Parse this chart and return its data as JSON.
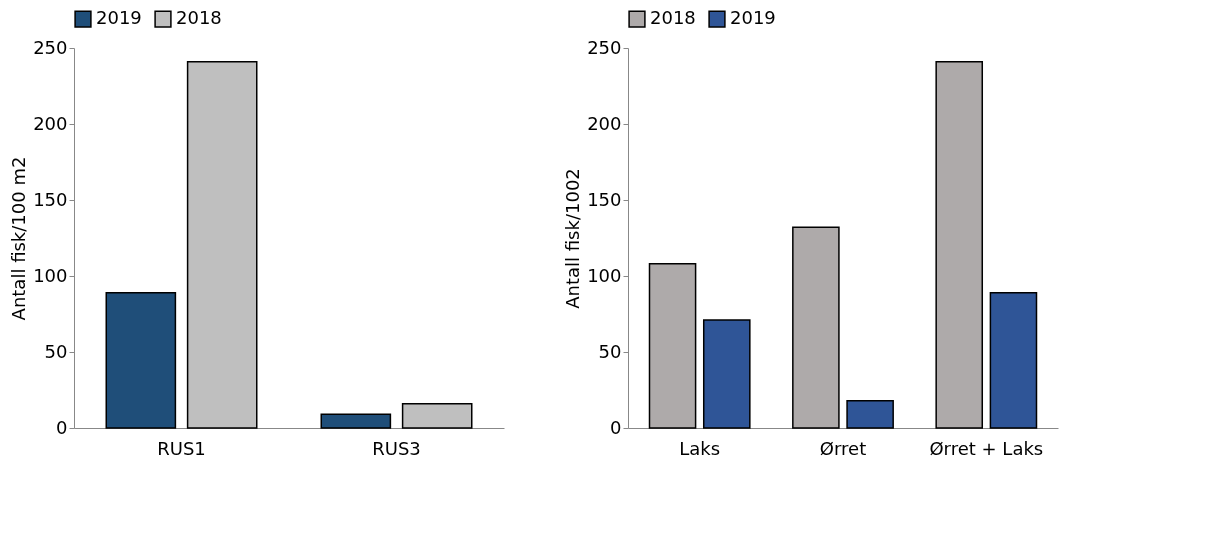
{
  "chart_data": [
    {
      "type": "bar",
      "ylabel": "Antall fisk/100 m2",
      "categories": [
        "RUS1",
        "RUS3"
      ],
      "ylim": [
        0,
        250
      ],
      "yticks": [
        0,
        50,
        100,
        150,
        200,
        250
      ],
      "grid": false,
      "legend": "top",
      "series": [
        {
          "name": "2019",
          "color": "#1f4e79",
          "values": [
            89,
            9
          ]
        },
        {
          "name": "2018",
          "color": "#bfbfbf",
          "values": [
            241,
            16
          ]
        }
      ]
    },
    {
      "type": "bar",
      "ylabel": "Antall fisk/1002",
      "categories": [
        "Laks",
        "Ørret",
        "Ørret + Laks"
      ],
      "ylim": [
        0,
        250
      ],
      "yticks": [
        0,
        50,
        100,
        150,
        200,
        250
      ],
      "grid": false,
      "legend": "top",
      "series": [
        {
          "name": "2018",
          "color": "#aeaaaa",
          "values": [
            108,
            132,
            241
          ]
        },
        {
          "name": "2019",
          "color": "#2f5597",
          "values": [
            71,
            18,
            89
          ]
        }
      ]
    }
  ]
}
